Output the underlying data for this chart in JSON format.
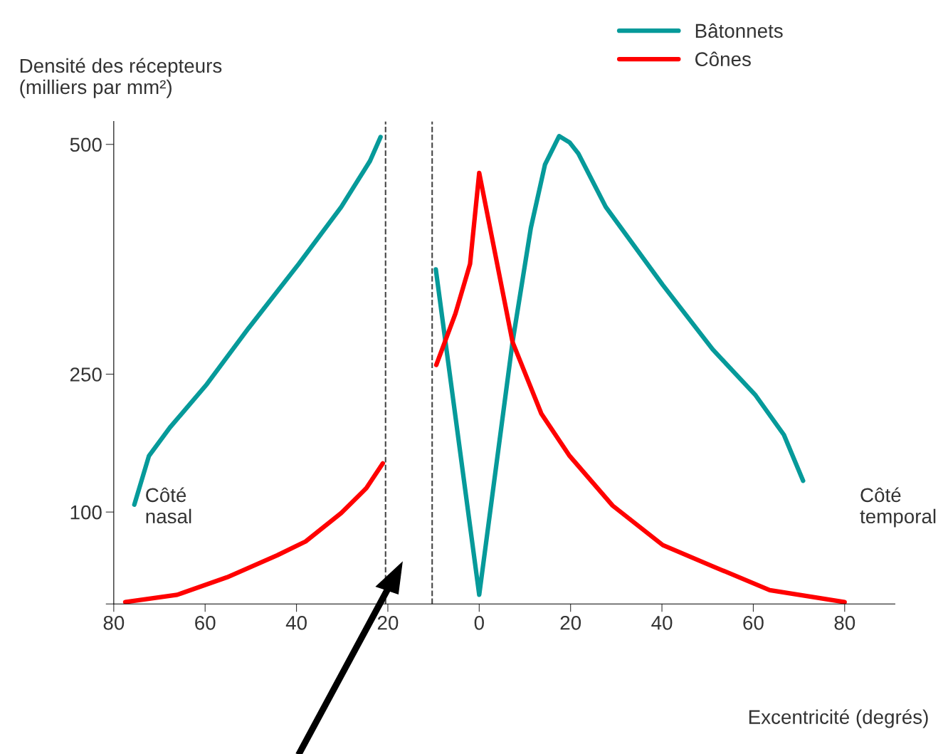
{
  "chart_data": {
    "type": "line",
    "ylabel": "Densité des récepteurs\n(milliers par mm²)",
    "xlabel": "Excentricité (degrés)",
    "xlim": [
      -80,
      91
    ],
    "xticks": [
      {
        "value": -80,
        "label": "80"
      },
      {
        "value": -60,
        "label": "60"
      },
      {
        "value": -40,
        "label": "40"
      },
      {
        "value": -20,
        "label": "20"
      },
      0,
      20,
      40,
      60,
      80
    ],
    "ylim": [
      0,
      525
    ],
    "yticks": [
      {
        "value": 0,
        "label": null
      },
      100,
      250,
      500
    ],
    "grid": false,
    "legend": "top right",
    "marker": "none",
    "line_style": "solid",
    "series": [
      {
        "name": "Bâtonnets",
        "color": "#069a9a",
        "x": [
          -75.5,
          -72.3,
          -67.7,
          -59.8,
          -50.5,
          -39.5,
          -30.2,
          -23.9,
          -21.6,
          -15,
          -9.5,
          0,
          7.3,
          11.3,
          14.4,
          17.5,
          19.8,
          21.7,
          27.7,
          40.2,
          51.1,
          60.5,
          66.7,
          70.9
        ],
        "values": [
          108,
          161,
          192,
          238,
          300,
          370,
          432,
          482,
          508,
          null,
          364,
          10,
          285,
          409,
          478,
          509,
          502,
          490,
          432,
          347,
          277,
          227,
          184,
          134
        ]
      },
      {
        "name": "Cônes",
        "color": "#ff0000",
        "x": [
          -77.5,
          -66.1,
          -55.2,
          -44.2,
          -38,
          -30.2,
          -24.7,
          -21.1,
          -15,
          -9.4,
          -5.2,
          -2,
          0,
          2.7,
          7.3,
          13.6,
          19.8,
          29.2,
          40.2,
          51.1,
          63.6,
          80
        ],
        "values": [
          2,
          10,
          29,
          53,
          68,
          99,
          126,
          153,
          null,
          260,
          316,
          370,
          469,
          401,
          285,
          207,
          161,
          107,
          64,
          41,
          15,
          2
        ]
      }
    ],
    "ref_lines": [
      {
        "axis": "x",
        "value": -20.5,
        "color": "#444444",
        "line_style": "dashed"
      },
      {
        "axis": "x",
        "value": -10.3,
        "color": "#444444",
        "line_style": "dashed"
      }
    ],
    "annotations": [
      "Côté\nnasal",
      "Côté\ntemporal"
    ]
  }
}
